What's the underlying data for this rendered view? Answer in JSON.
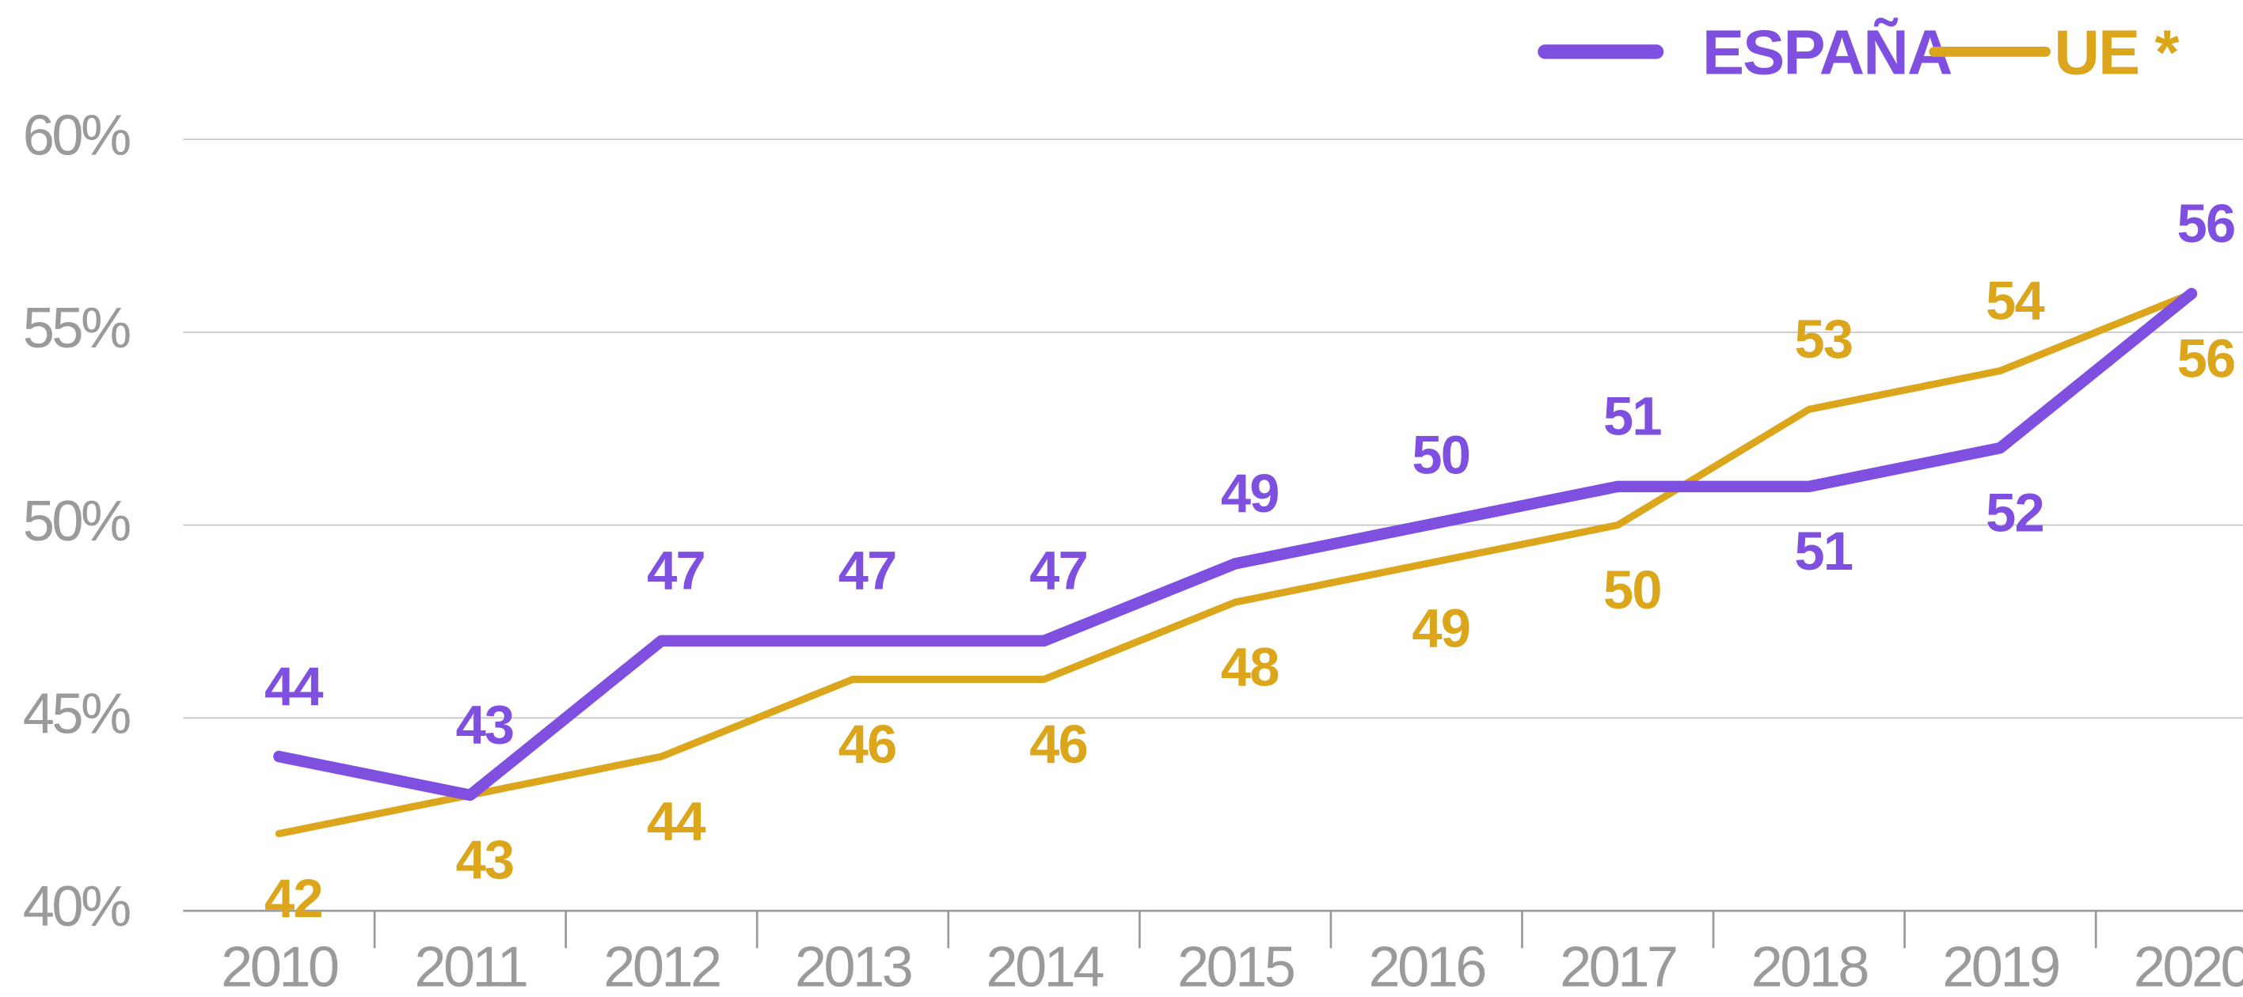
{
  "chart_data": {
    "type": "line",
    "categories": [
      "2010",
      "2011",
      "2012",
      "2013",
      "2014",
      "2015",
      "2016",
      "2017",
      "2018",
      "2019",
      "2020"
    ],
    "series": [
      {
        "name": "ESPAÑA",
        "color": "#7f4fe0",
        "values": [
          44,
          43,
          47,
          47,
          47,
          49,
          50,
          51,
          51,
          52,
          56
        ]
      },
      {
        "name": "UE *",
        "color": "#dca61c",
        "values": [
          42,
          43,
          44,
          46,
          46,
          48,
          49,
          50,
          53,
          54,
          56
        ]
      }
    ],
    "ylim": [
      40,
      60
    ],
    "yticks": [
      {
        "value": 40,
        "label": "40%"
      },
      {
        "value": 45,
        "label": "45%"
      },
      {
        "value": 50,
        "label": "50%"
      },
      {
        "value": 55,
        "label": "55%"
      },
      {
        "value": 60,
        "label": "60%"
      }
    ],
    "grid": true,
    "legend": "top-right"
  }
}
